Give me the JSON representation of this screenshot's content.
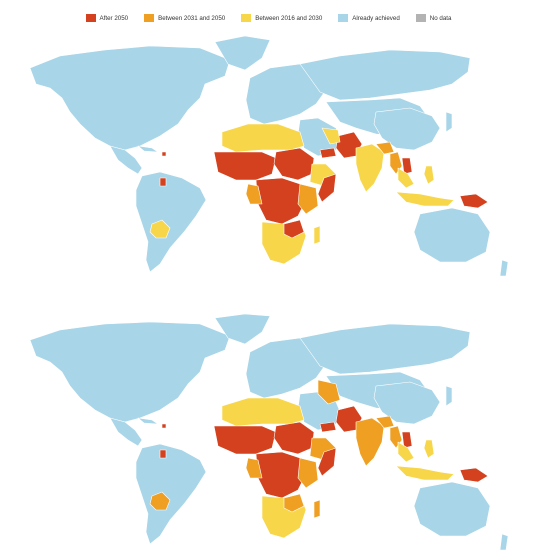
{
  "legend": {
    "items": [
      {
        "label": "After 2050",
        "color": "#d4411e"
      },
      {
        "label": "Between 2031 and 2050",
        "color": "#ef9f22"
      },
      {
        "label": "Between 2016 and 2030",
        "color": "#f8d64a"
      },
      {
        "label": "Already achieved",
        "color": "#a8d5e8"
      },
      {
        "label": "No data",
        "color": "#b3b3b3"
      }
    ]
  },
  "colors": {
    "water": "#ffffff",
    "border": "#ffffff",
    "after_2050": "#d4411e",
    "between_2031_2050": "#ef9f22",
    "between_2016_2030": "#f8d64a",
    "achieved": "#a8d5e8",
    "no_data": "#b3b3b3"
  }
}
